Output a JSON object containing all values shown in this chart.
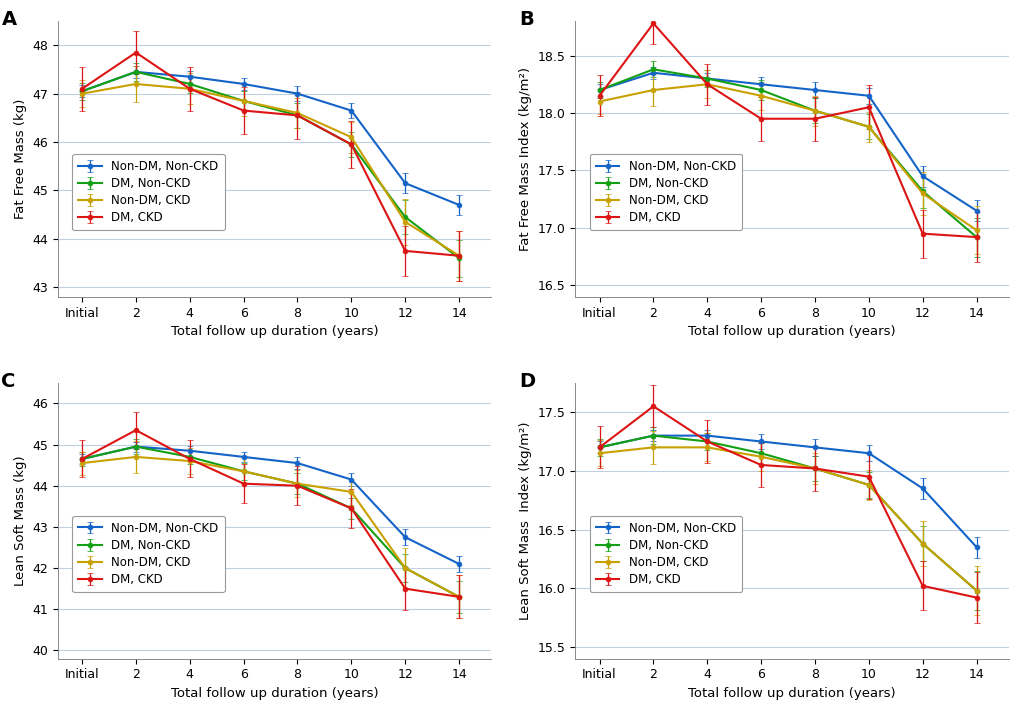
{
  "x_ticks": [
    "Initial",
    "2",
    "4",
    "6",
    "8",
    "10",
    "12",
    "14"
  ],
  "x_vals": [
    0,
    2,
    4,
    6,
    8,
    10,
    12,
    14
  ],
  "groups": [
    "Non-DM, Non-CKD",
    "DM, Non-CKD",
    "Non-DM, CKD",
    "DM, CKD"
  ],
  "colors": [
    "#1464c8",
    "#14a014",
    "#c8a000",
    "#dc1414"
  ],
  "panel_A": {
    "ylabel": "Fat Free Mass (kg)",
    "ylim": [
      42.8,
      48.5
    ],
    "yticks": [
      43,
      44,
      45,
      46,
      47,
      48
    ],
    "means": {
      "Non-DM, Non-CKD": [
        47.05,
        47.45,
        47.35,
        47.2,
        47.0,
        46.65,
        45.15,
        44.7
      ],
      "DM, Non-CKD": [
        47.05,
        47.45,
        47.2,
        46.85,
        46.55,
        45.95,
        44.45,
        43.6
      ],
      "Non-DM, CKD": [
        47.0,
        47.2,
        47.1,
        46.85,
        46.6,
        46.1,
        44.35,
        43.65
      ],
      "DM, CKD": [
        47.1,
        47.85,
        47.1,
        46.65,
        46.55,
        45.95,
        43.75,
        43.65
      ]
    },
    "errors": {
      "Non-DM, Non-CKD": [
        0.12,
        0.12,
        0.12,
        0.13,
        0.15,
        0.15,
        0.2,
        0.2
      ],
      "DM, Non-CKD": [
        0.18,
        0.18,
        0.18,
        0.2,
        0.25,
        0.25,
        0.35,
        0.38
      ],
      "Non-DM, CKD": [
        0.28,
        0.38,
        0.32,
        0.32,
        0.32,
        0.32,
        0.48,
        0.52
      ],
      "DM, CKD": [
        0.45,
        0.45,
        0.45,
        0.48,
        0.48,
        0.48,
        0.52,
        0.52
      ]
    }
  },
  "panel_B": {
    "ylabel": "Fat Free Mass Index (kg/m²)",
    "ylim": [
      16.4,
      18.8
    ],
    "yticks": [
      16.5,
      17.0,
      17.5,
      18.0,
      18.5
    ],
    "means": {
      "Non-DM, Non-CKD": [
        18.2,
        18.35,
        18.3,
        18.25,
        18.2,
        18.15,
        17.45,
        17.15
      ],
      "DM, Non-CKD": [
        18.2,
        18.38,
        18.3,
        18.2,
        18.02,
        17.88,
        17.32,
        16.92
      ],
      "Non-DM, CKD": [
        18.1,
        18.2,
        18.25,
        18.15,
        18.02,
        17.88,
        17.3,
        16.98
      ],
      "DM, CKD": [
        18.15,
        18.78,
        18.25,
        17.95,
        17.95,
        18.05,
        16.95,
        16.92
      ]
    },
    "errors": {
      "Non-DM, Non-CKD": [
        0.05,
        0.05,
        0.05,
        0.06,
        0.07,
        0.07,
        0.09,
        0.09
      ],
      "DM, Non-CKD": [
        0.07,
        0.07,
        0.07,
        0.09,
        0.11,
        0.11,
        0.15,
        0.17
      ],
      "Non-DM, CKD": [
        0.11,
        0.14,
        0.12,
        0.12,
        0.13,
        0.13,
        0.19,
        0.21
      ],
      "DM, CKD": [
        0.18,
        0.18,
        0.18,
        0.19,
        0.19,
        0.19,
        0.21,
        0.22
      ]
    }
  },
  "panel_C": {
    "ylabel": "Lean Soft Mass (kg)",
    "ylim": [
      39.8,
      46.5
    ],
    "yticks": [
      40,
      41,
      42,
      43,
      44,
      45,
      46
    ],
    "means": {
      "Non-DM, Non-CKD": [
        44.65,
        44.95,
        44.85,
        44.7,
        44.55,
        44.15,
        42.75,
        42.1
      ],
      "DM, Non-CKD": [
        44.65,
        44.95,
        44.7,
        44.35,
        44.05,
        43.45,
        42.0,
        41.3
      ],
      "Non-DM, CKD": [
        44.55,
        44.7,
        44.6,
        44.35,
        44.05,
        43.85,
        42.0,
        41.3
      ],
      "DM, CKD": [
        44.65,
        45.35,
        44.65,
        44.05,
        44.0,
        43.45,
        41.5,
        41.3
      ]
    },
    "errors": {
      "Non-DM, Non-CKD": [
        0.12,
        0.12,
        0.12,
        0.13,
        0.15,
        0.15,
        0.2,
        0.2
      ],
      "DM, Non-CKD": [
        0.18,
        0.18,
        0.18,
        0.2,
        0.25,
        0.25,
        0.35,
        0.38
      ],
      "Non-DM, CKD": [
        0.28,
        0.38,
        0.32,
        0.32,
        0.32,
        0.32,
        0.48,
        0.52
      ],
      "DM, CKD": [
        0.45,
        0.45,
        0.45,
        0.48,
        0.48,
        0.48,
        0.52,
        0.52
      ]
    }
  },
  "panel_D": {
    "ylabel": "Lean Soft Mass  Index (kg/m²)",
    "ylim": [
      15.4,
      17.75
    ],
    "yticks": [
      15.5,
      16.0,
      16.5,
      17.0,
      17.5
    ],
    "means": {
      "Non-DM, Non-CKD": [
        17.2,
        17.3,
        17.3,
        17.25,
        17.2,
        17.15,
        16.85,
        16.35
      ],
      "DM, Non-CKD": [
        17.2,
        17.3,
        17.25,
        17.15,
        17.02,
        16.88,
        16.38,
        15.98
      ],
      "Non-DM, CKD": [
        17.15,
        17.2,
        17.2,
        17.12,
        17.02,
        16.88,
        16.38,
        15.98
      ],
      "DM, CKD": [
        17.2,
        17.55,
        17.25,
        17.05,
        17.02,
        16.95,
        16.02,
        15.92
      ]
    },
    "errors": {
      "Non-DM, Non-CKD": [
        0.05,
        0.05,
        0.05,
        0.06,
        0.07,
        0.07,
        0.09,
        0.09
      ],
      "DM, Non-CKD": [
        0.07,
        0.07,
        0.07,
        0.09,
        0.11,
        0.11,
        0.15,
        0.17
      ],
      "Non-DM, CKD": [
        0.11,
        0.14,
        0.12,
        0.12,
        0.13,
        0.13,
        0.19,
        0.21
      ],
      "DM, CKD": [
        0.18,
        0.18,
        0.18,
        0.19,
        0.19,
        0.19,
        0.21,
        0.22
      ]
    }
  },
  "xlabel": "Total follow up duration (years)",
  "panel_labels": [
    "A",
    "B",
    "C",
    "D"
  ],
  "background_color": "#ffffff",
  "grid_color": "#c0d0e0",
  "capsize": 2,
  "linewidth": 1.5,
  "markersize": 3.5
}
